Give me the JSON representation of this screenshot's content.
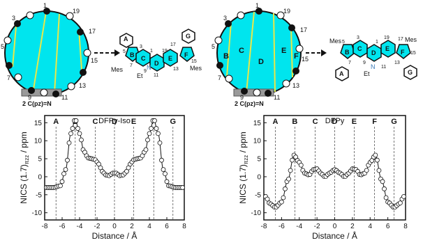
{
  "diagrams": [
    {
      "cycle_labels": [
        "1",
        "3",
        "5",
        "7",
        "9",
        "11",
        "13",
        "15",
        "17",
        "19"
      ],
      "bottom_label": "2 C(pz)=N",
      "molecule_atom_labels": [
        "1",
        "3",
        "5",
        "7",
        "9",
        "11",
        "13",
        "15",
        "17",
        "19"
      ],
      "ring_labels": [
        "A",
        "B",
        "C",
        "D",
        "E",
        "F",
        "G"
      ],
      "substituents": [
        "Mes",
        "Mes",
        "Et"
      ],
      "nitrogen": "N"
    },
    {
      "cycle_labels": [
        "1",
        "3",
        "5",
        "7",
        "9",
        "11",
        "13",
        "15",
        "17",
        "19"
      ],
      "bottom_label": "2 C(pz)=N",
      "region_labels": [
        "B",
        "C",
        "D",
        "E",
        "F"
      ],
      "molecule_atom_labels": [
        "1",
        "3",
        "5",
        "7",
        "9",
        "11",
        "13",
        "15",
        "17",
        "19"
      ],
      "ring_labels": [
        "A",
        "B",
        "C",
        "D",
        "E",
        "F",
        "G"
      ],
      "substituents": [
        "Mes",
        "Mes",
        "Et"
      ],
      "nitrogen": "N"
    }
  ],
  "chart_data": [
    {
      "type": "line",
      "title": "DFPy-Iso",
      "xlabel": "Distance / Å",
      "ylabel": "NICS (1.7)",
      "ylabel_sub": "πzz",
      "ylabel_unit": " / ppm",
      "xlim": [
        -8,
        8
      ],
      "ylim": [
        -12,
        17
      ],
      "xticks": [
        -8,
        -6,
        -4,
        -2,
        0,
        2,
        4,
        6,
        8
      ],
      "yticks": [
        -10,
        -5,
        0,
        5,
        10,
        15
      ],
      "ring_markers": [
        {
          "label": "A",
          "x": -6.7
        },
        {
          "label": "B",
          "x": -4.5
        },
        {
          "label": "C",
          "x": -2.2
        },
        {
          "label": "D",
          "x": 0
        },
        {
          "label": "E",
          "x": 2.2
        },
        {
          "label": "F",
          "x": 4.5
        },
        {
          "label": "G",
          "x": 6.7
        }
      ],
      "series": [
        {
          "x": [
            -7.8,
            -7.0,
            -6.2,
            -5.6,
            -5.0,
            -4.5,
            -4.0,
            -3.5,
            -3.0,
            -2.6,
            -2.2,
            -1.8,
            -1.4,
            -1.0,
            -0.6,
            -0.2,
            0.2,
            0.6,
            1.0,
            1.4,
            1.8,
            2.2,
            2.6,
            3.0,
            3.5,
            4.0,
            4.5,
            5.0,
            5.6,
            6.2,
            7.0,
            7.8
          ],
          "y": [
            -3.0,
            -3.0,
            -2.5,
            2.0,
            12.0,
            16.0,
            12.0,
            7.0,
            5.2,
            5.0,
            4.7,
            3.5,
            1.5,
            0.5,
            0.3,
            1.0,
            1.0,
            0.3,
            0.5,
            1.5,
            3.5,
            4.7,
            5.0,
            5.2,
            7.0,
            12.0,
            16.0,
            12.0,
            2.0,
            -2.5,
            -3.0,
            -3.0
          ]
        }
      ]
    },
    {
      "type": "line",
      "title": "DFPy",
      "xlabel": "Distance / Å",
      "ylabel": "NICS (1.7)",
      "ylabel_sub": "πzz",
      "ylabel_unit": " / ppm",
      "xlim": [
        -8,
        8
      ],
      "ylim": [
        -12,
        17
      ],
      "xticks": [
        -8,
        -6,
        -4,
        -2,
        0,
        2,
        4,
        6,
        8
      ],
      "yticks": [
        -10,
        -5,
        0,
        5,
        10,
        15
      ],
      "ring_markers": [
        {
          "label": "A",
          "x": -6.7
        },
        {
          "label": "B",
          "x": -4.5
        },
        {
          "label": "C",
          "x": -2.2
        },
        {
          "label": "D",
          "x": 0
        },
        {
          "label": "E",
          "x": 2.2
        },
        {
          "label": "F",
          "x": 4.5
        },
        {
          "label": "G",
          "x": 6.7
        }
      ],
      "series": [
        {
          "x": [
            -7.8,
            -7.3,
            -6.7,
            -6.0,
            -5.3,
            -4.6,
            -4.0,
            -3.4,
            -2.9,
            -2.4,
            -2.0,
            -1.6,
            -1.1,
            -0.6,
            0,
            0.6,
            1.1,
            1.6,
            2.0,
            2.4,
            2.9,
            3.4,
            4.0,
            4.6,
            5.3,
            6.0,
            6.7,
            7.3,
            7.8
          ],
          "y": [
            -5.5,
            -7.5,
            -8.5,
            -7.0,
            -1.0,
            6.0,
            4.0,
            1.0,
            0.5,
            2.0,
            2.2,
            1.0,
            0,
            1.0,
            2.0,
            1.0,
            0,
            1.0,
            2.2,
            2.0,
            0.5,
            1.0,
            4.0,
            6.0,
            -1.0,
            -7.0,
            -8.5,
            -7.5,
            -5.5
          ]
        }
      ]
    }
  ]
}
